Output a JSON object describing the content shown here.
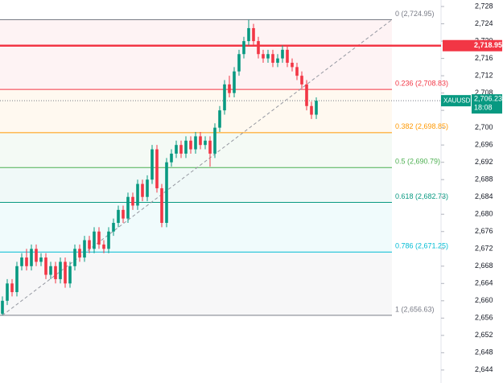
{
  "chart_data": {
    "type": "candlestick",
    "open": [
      2657,
      2660,
      2664,
      2662,
      2668,
      2670,
      2668,
      2672,
      2669,
      2670,
      2666,
      2668,
      2665,
      2669,
      2664,
      2668,
      2672,
      2670,
      2674,
      2672,
      2676,
      2673,
      2672,
      2676,
      2678,
      2681,
      2679,
      2684,
      2682,
      2687,
      2684,
      2688,
      2695,
      2686,
      2678,
      2692,
      2694,
      2696,
      2694,
      2697,
      2695,
      2698,
      2696,
      2697,
      2694,
      2700,
      2704,
      2710,
      2708,
      2713,
      2717,
      2720,
      2723,
      2720,
      2717,
      2716,
      2717,
      2715,
      2716,
      2718,
      2715,
      2714,
      2712,
      2710,
      2705,
      2703
    ],
    "high": [
      2661,
      2665,
      2665,
      2669,
      2671,
      2672,
      2673,
      2673,
      2671,
      2671,
      2669,
      2669,
      2670,
      2670,
      2669,
      2673,
      2673,
      2675,
      2675,
      2677,
      2677,
      2674,
      2677,
      2679,
      2682,
      2682,
      2685,
      2685,
      2688,
      2688,
      2689,
      2696,
      2696,
      2687,
      2693,
      2695,
      2697,
      2697,
      2698,
      2698,
      2699,
      2699,
      2698,
      2698,
      2701,
      2705,
      2711,
      2712,
      2714,
      2718,
      2721,
      2724.95,
      2724,
      2721,
      2718,
      2718,
      2718,
      2717,
      2719,
      2719,
      2716,
      2715,
      2713,
      2711,
      2706,
      2707
    ],
    "low": [
      2656.63,
      2659,
      2661,
      2661,
      2667,
      2667,
      2667,
      2668,
      2668,
      2665,
      2665,
      2664,
      2664,
      2663,
      2663,
      2667,
      2669,
      2669,
      2671,
      2671,
      2672,
      2671,
      2671,
      2675,
      2677,
      2678,
      2678,
      2681,
      2681,
      2683,
      2683,
      2687,
      2685,
      2677,
      2677,
      2691,
      2693,
      2693,
      2693,
      2694,
      2694,
      2695,
      2695,
      2691,
      2693,
      2699,
      2703,
      2707,
      2707,
      2712,
      2716,
      2719,
      2719,
      2716,
      2715,
      2715,
      2714,
      2714,
      2715,
      2714,
      2713,
      2711,
      2709,
      2704,
      2702,
      2702
    ],
    "close": [
      2660,
      2664,
      2662,
      2668,
      2670,
      2668,
      2672,
      2669,
      2670,
      2666,
      2668,
      2665,
      2669,
      2664,
      2668,
      2672,
      2670,
      2674,
      2672,
      2676,
      2673,
      2672,
      2676,
      2678,
      2681,
      2679,
      2684,
      2682,
      2687,
      2684,
      2688,
      2695,
      2686,
      2678,
      2692,
      2694,
      2696,
      2694,
      2697,
      2695,
      2698,
      2696,
      2697,
      2694,
      2700,
      2704,
      2710,
      2708,
      2713,
      2717,
      2720,
      2723,
      2720,
      2717,
      2716,
      2717,
      2715,
      2716,
      2718,
      2715,
      2714,
      2712,
      2710,
      2705,
      2703,
      2706.23
    ],
    "up_color": "#089981",
    "down_color": "#f23645",
    "ylim": [
      2641,
      2729.5
    ],
    "yticks": [
      {
        "value": 2728,
        "label": "2,728"
      },
      {
        "value": 2724,
        "label": "2,724"
      },
      {
        "value": 2720,
        "label": "2,720"
      },
      {
        "value": 2716,
        "label": "2,716"
      },
      {
        "value": 2712,
        "label": "2,712"
      },
      {
        "value": 2708,
        "label": "2,708"
      },
      {
        "value": 2704,
        "label": "2,704"
      },
      {
        "value": 2700,
        "label": "2,700"
      },
      {
        "value": 2696,
        "label": "2,696"
      },
      {
        "value": 2692,
        "label": "2,692"
      },
      {
        "value": 2688,
        "label": "2,688"
      },
      {
        "value": 2684,
        "label": "2,684"
      },
      {
        "value": 2680,
        "label": "2,680"
      },
      {
        "value": 2676,
        "label": "2,676"
      },
      {
        "value": 2672,
        "label": "2,672"
      },
      {
        "value": 2668,
        "label": "2,668"
      },
      {
        "value": 2664,
        "label": "2,664"
      },
      {
        "value": 2660,
        "label": "2,660"
      },
      {
        "value": 2656,
        "label": "2,656"
      },
      {
        "value": 2652,
        "label": "2,652"
      },
      {
        "value": 2648,
        "label": "2,648"
      },
      {
        "value": 2644,
        "label": "2,644"
      }
    ],
    "fib_levels": [
      {
        "label": "0 (2,724.95)",
        "value": 2724.95,
        "color": "#787b86"
      },
      {
        "label": "0.236 (2,708.83)",
        "value": 2708.83,
        "color": "#f23645"
      },
      {
        "label": "0.382 (2,698.85)",
        "value": 2698.85,
        "color": "#ff9800"
      },
      {
        "label": "0.5 (2,690.79)",
        "value": 2690.79,
        "color": "#4caf50"
      },
      {
        "label": "0.618 (2,682.73)",
        "value": 2682.73,
        "color": "#089981"
      },
      {
        "label": "0.786 (2,671.25)",
        "value": 2671.25,
        "color": "#00bcd4"
      },
      {
        "label": "1 (2,656.63)",
        "value": 2656.63,
        "color": "#787b86"
      }
    ],
    "horizontal_line": {
      "value": 2718.95,
      "label": "2,718.95",
      "color": "#f23645"
    },
    "current_price": {
      "symbol": "XAUUSD",
      "price_label": "2,706.23",
      "countdown": "18:08",
      "color": "#089981"
    }
  }
}
